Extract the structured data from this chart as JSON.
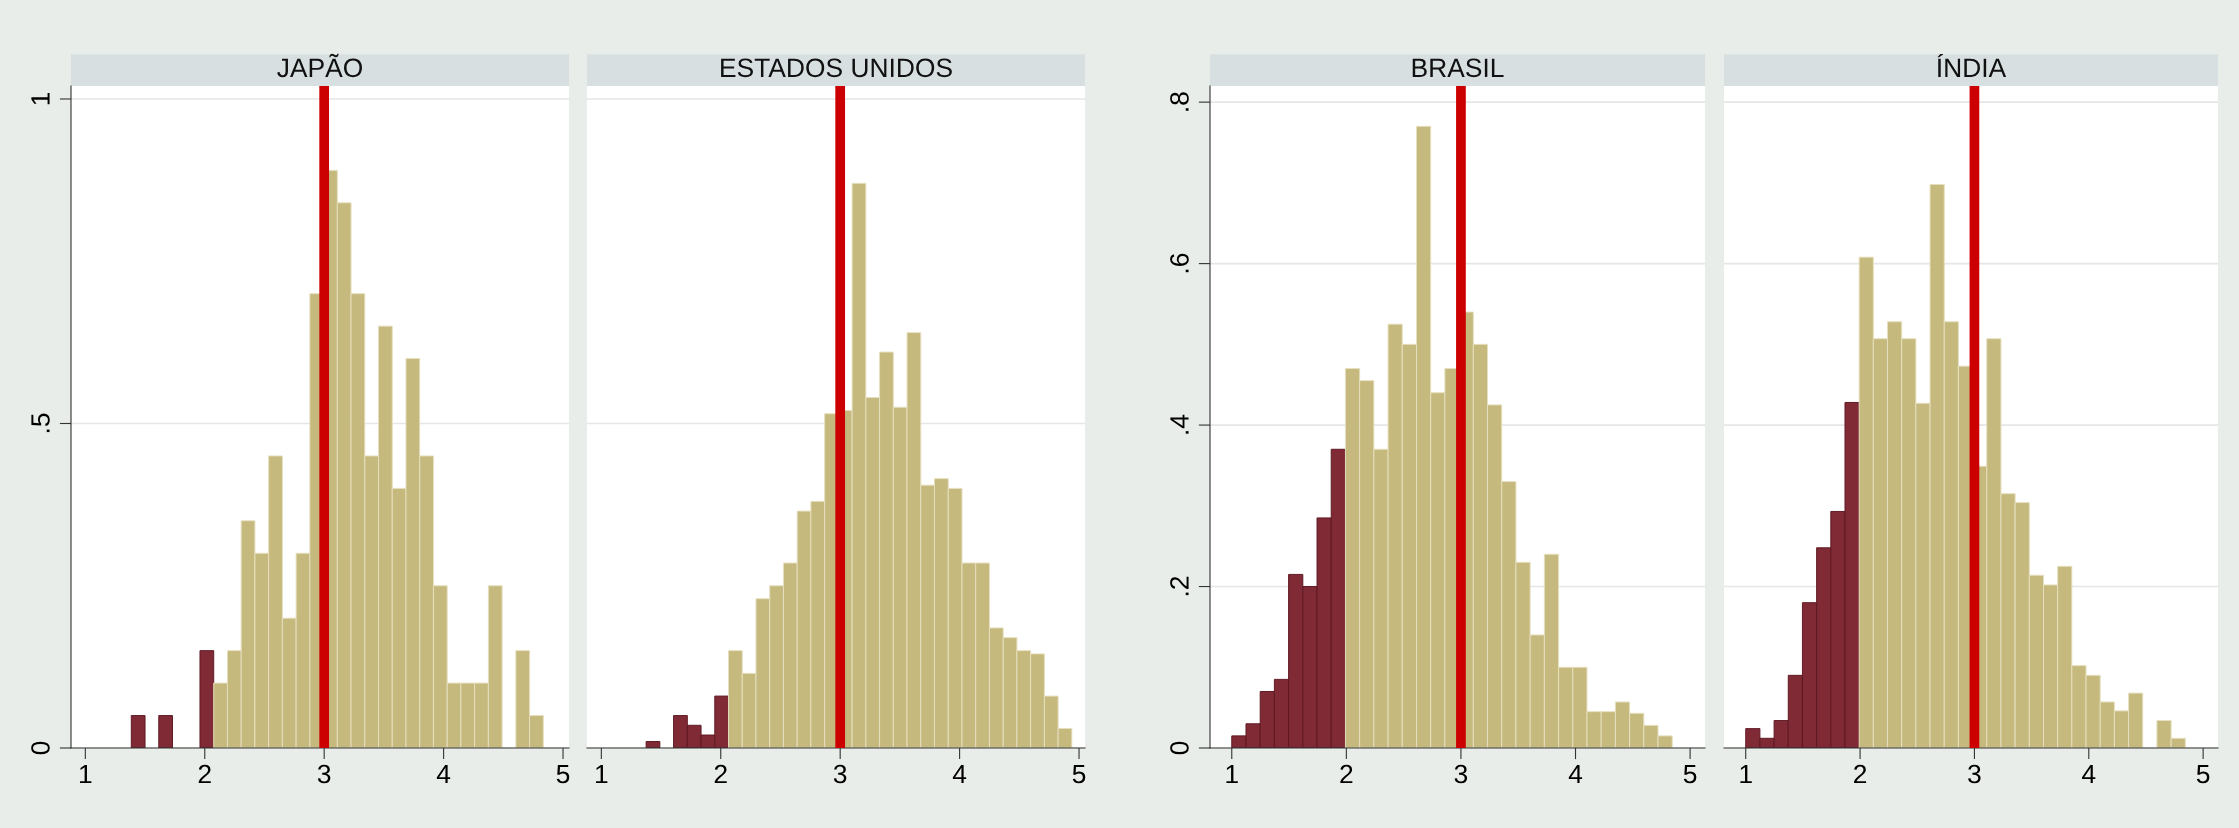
{
  "chart_data": [
    {
      "type": "histogram",
      "title": "JAPÃO",
      "bins": [
        1.385,
        1.5,
        1.615,
        1.73,
        1.845,
        1.96,
        2.075,
        2.19,
        2.305,
        2.42,
        2.535,
        2.65,
        2.765,
        2.88,
        2.995,
        3.11,
        3.225,
        3.34,
        3.455,
        3.57,
        3.685,
        3.8,
        3.915,
        4.03,
        4.145,
        4.26,
        4.375,
        4.49,
        4.605,
        4.72,
        4.835
      ],
      "values": [
        0.05,
        0,
        0.05,
        0,
        0,
        0.15,
        0.1,
        0.15,
        0.35,
        0.3,
        0.45,
        0.2,
        0.3,
        0.7,
        0.89,
        0.84,
        0.7,
        0.45,
        0.65,
        0.4,
        0.6,
        0.45,
        0.25,
        0.1,
        0.1,
        0.1,
        0.25,
        0,
        0.15,
        0.05
      ],
      "colors": [
        "#802a36",
        "#802a36",
        "#802a36",
        "#802a36",
        "#802a36",
        "#802a36",
        "#c5b97d",
        "#c5b97d",
        "#c5b97d",
        "#c5b97d",
        "#c5b97d",
        "#c5b97d",
        "#c5b97d",
        "#c5b97d",
        "#c5b97d",
        "#c5b97d",
        "#c5b97d",
        "#c5b97d",
        "#c5b97d",
        "#c5b97d",
        "#c5b97d",
        "#c5b97d",
        "#c5b97d",
        "#c5b97d",
        "#c5b97d",
        "#c5b97d",
        "#c5b97d",
        "#c5b97d",
        "#c5b97d",
        "#c5b97d"
      ],
      "xlim": [
        0.88,
        5.05
      ],
      "xticks": [
        1,
        2,
        3,
        4,
        5
      ],
      "ylim": [
        0,
        1.02
      ],
      "yticks": [
        0,
        {
          "value": 0.5,
          "label": ".5"
        },
        1
      ],
      "grid": "y",
      "ref_lines": [
        {
          "axis": "x",
          "value": 3,
          "color": "#cc0000"
        }
      ]
    },
    {
      "type": "histogram",
      "title": "ESTADOS UNIDOS",
      "bins": [
        1.375,
        1.49,
        1.605,
        1.72,
        1.835,
        1.95,
        2.065,
        2.18,
        2.295,
        2.41,
        2.525,
        2.64,
        2.755,
        2.87,
        2.985,
        3.1,
        3.215,
        3.33,
        3.445,
        3.56,
        3.675,
        3.79,
        3.905,
        4.02,
        4.135,
        4.25,
        4.365,
        4.48,
        4.595,
        4.71,
        4.825,
        4.94
      ],
      "values": [
        0.01,
        0,
        0.05,
        0.035,
        0.02,
        0.08,
        0.15,
        0.115,
        0.23,
        0.25,
        0.285,
        0.365,
        0.38,
        0.515,
        0.52,
        0.87,
        0.54,
        0.61,
        0.525,
        0.64,
        0.405,
        0.415,
        0.4,
        0.285,
        0.285,
        0.185,
        0.17,
        0.15,
        0.145,
        0.08,
        0.03
      ],
      "colors": [
        "#802a36",
        "#802a36",
        "#802a36",
        "#802a36",
        "#802a36",
        "#802a36",
        "#c5b97d",
        "#c5b97d",
        "#c5b97d",
        "#c5b97d",
        "#c5b97d",
        "#c5b97d",
        "#c5b97d",
        "#c5b97d",
        "#c5b97d",
        "#c5b97d",
        "#c5b97d",
        "#c5b97d",
        "#c5b97d",
        "#c5b97d",
        "#c5b97d",
        "#c5b97d",
        "#c5b97d",
        "#c5b97d",
        "#c5b97d",
        "#c5b97d",
        "#c5b97d",
        "#c5b97d",
        "#c5b97d",
        "#c5b97d",
        "#c5b97d"
      ],
      "xlim": [
        0.88,
        5.05
      ],
      "xticks": [
        1,
        2,
        3,
        4,
        5
      ],
      "ylim": [
        0,
        1.02
      ],
      "yticks": [
        {
          "value": 0,
          "label": null
        },
        {
          "value": 0.5,
          "label": null
        },
        {
          "value": 1,
          "label": null
        }
      ],
      "grid": "y",
      "tick_labels": "x",
      "ref_lines": [
        {
          "axis": "x",
          "value": 3,
          "color": "#cc0000"
        }
      ]
    },
    {
      "type": "histogram",
      "title": "BRASIL",
      "bins": [
        1,
        1.124,
        1.248,
        1.372,
        1.496,
        1.62,
        1.744,
        1.868,
        1.992,
        2.116,
        2.24,
        2.364,
        2.488,
        2.612,
        2.736,
        2.86,
        2.984,
        3.108,
        3.232,
        3.356,
        3.48,
        3.604,
        3.728,
        3.852,
        3.976,
        4.1,
        4.224,
        4.348,
        4.472,
        4.596,
        4.72,
        4.844
      ],
      "values": [
        0.015,
        0.03,
        0.07,
        0.085,
        0.215,
        0.2,
        0.285,
        0.37,
        0.47,
        0.455,
        0.37,
        0.525,
        0.5,
        0.77,
        0.44,
        0.47,
        0.54,
        0.5,
        0.425,
        0.33,
        0.23,
        0.14,
        0.24,
        0.1,
        0.1,
        0.045,
        0.045,
        0.057,
        0.043,
        0.028,
        0.015
      ],
      "colors": [
        "#802a36",
        "#802a36",
        "#802a36",
        "#802a36",
        "#802a36",
        "#802a36",
        "#802a36",
        "#802a36",
        "#c5b97d",
        "#c5b97d",
        "#c5b97d",
        "#c5b97d",
        "#c5b97d",
        "#c5b97d",
        "#c5b97d",
        "#c5b97d",
        "#c5b97d",
        "#c5b97d",
        "#c5b97d",
        "#c5b97d",
        "#c5b97d",
        "#c5b97d",
        "#c5b97d",
        "#c5b97d",
        "#c5b97d",
        "#c5b97d",
        "#c5b97d",
        "#c5b97d",
        "#c5b97d",
        "#c5b97d",
        "#c5b97d"
      ],
      "xlim": [
        0.81,
        5.13
      ],
      "xticks": [
        1,
        2,
        3,
        4,
        5
      ],
      "ylim": [
        0,
        0.82
      ],
      "yticks": [
        0,
        {
          "value": 0.2,
          "label": ".2"
        },
        {
          "value": 0.4,
          "label": ".4"
        },
        {
          "value": 0.6,
          "label": ".6"
        },
        {
          "value": 0.8,
          "label": ".8"
        }
      ],
      "grid": "y",
      "ref_lines": [
        {
          "axis": "x",
          "value": 3,
          "color": "#cc0000"
        }
      ]
    },
    {
      "type": "histogram",
      "title": "ÍNDIA",
      "bins": [
        1,
        1.124,
        1.248,
        1.372,
        1.496,
        1.62,
        1.744,
        1.868,
        1.992,
        2.116,
        2.24,
        2.364,
        2.488,
        2.612,
        2.736,
        2.86,
        2.984,
        3.108,
        3.232,
        3.356,
        3.48,
        3.604,
        3.728,
        3.852,
        3.976,
        4.1,
        4.224,
        4.348,
        4.472,
        4.596,
        4.72,
        4.844
      ],
      "values": [
        0.024,
        0.012,
        0.034,
        0.09,
        0.18,
        0.248,
        0.293,
        0.428,
        0.608,
        0.507,
        0.528,
        0.507,
        0.427,
        0.698,
        0.528,
        0.473,
        0.349,
        0.507,
        0.315,
        0.304,
        0.214,
        0.202,
        0.225,
        0.102,
        0.09,
        0.057,
        0.046,
        0.068,
        0,
        0.034,
        0.012
      ],
      "colors": [
        "#802a36",
        "#802a36",
        "#802a36",
        "#802a36",
        "#802a36",
        "#802a36",
        "#802a36",
        "#802a36",
        "#c5b97d",
        "#c5b97d",
        "#c5b97d",
        "#c5b97d",
        "#c5b97d",
        "#c5b97d",
        "#c5b97d",
        "#c5b97d",
        "#c5b97d",
        "#c5b97d",
        "#c5b97d",
        "#c5b97d",
        "#c5b97d",
        "#c5b97d",
        "#c5b97d",
        "#c5b97d",
        "#c5b97d",
        "#c5b97d",
        "#c5b97d",
        "#c5b97d",
        "#c5b97d",
        "#c5b97d",
        "#c5b97d"
      ],
      "xlim": [
        0.81,
        5.13
      ],
      "xticks": [
        1,
        2,
        3,
        4,
        5
      ],
      "ylim": [
        0,
        0.82
      ],
      "yticks": [
        {
          "value": 0,
          "label": null
        },
        {
          "value": 0.2,
          "label": null
        },
        {
          "value": 0.4,
          "label": null
        },
        {
          "value": 0.6,
          "label": null
        },
        {
          "value": 0.8,
          "label": null
        }
      ],
      "grid": "y",
      "tick_labels": "x",
      "ref_lines": [
        {
          "axis": "x",
          "value": 3,
          "color": "#cc0000"
        }
      ]
    }
  ]
}
